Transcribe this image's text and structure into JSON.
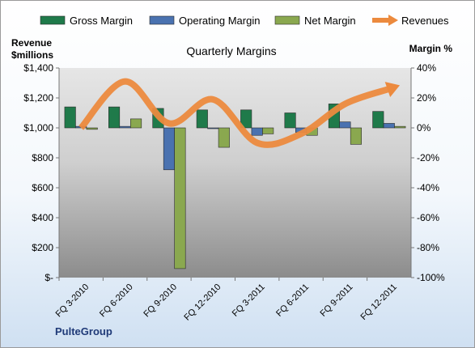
{
  "chart_data": {
    "type": "bar",
    "title": "Quarterly Margins",
    "company": "PulteGroup",
    "ylabel_left_line1": "Revenue",
    "ylabel_left_line2": "$millions",
    "ylabel_right": "Margin %",
    "categories": [
      "FQ 3-2010",
      "FQ 6-2010",
      "FQ 9-2010",
      "FQ 12-2010",
      "FQ 3-2011",
      "FQ 6-2011",
      "FQ 9-2011",
      "FQ 12-2011"
    ],
    "left_axis": {
      "min": 0,
      "max": 1400,
      "step": 200,
      "tick_labels": [
        "$-",
        "$200",
        "$400",
        "$600",
        "$800",
        "$1,000",
        "$1,200",
        "$1,400"
      ]
    },
    "right_axis": {
      "min": -100,
      "max": 40,
      "step": 20,
      "tick_labels": [
        "-100%",
        "-80%",
        "-60%",
        "-40%",
        "-20%",
        "0%",
        "20%",
        "40%"
      ]
    },
    "series": [
      {
        "name": "Gross Margin",
        "kind": "bar",
        "axis": "right",
        "color": "#1f7a4a",
        "values": [
          14,
          14,
          13,
          12,
          12,
          10,
          16,
          11
        ]
      },
      {
        "name": "Operating Margin",
        "kind": "bar",
        "axis": "right",
        "color": "#4a72b0",
        "values": [
          1,
          1,
          -28,
          0,
          -5,
          -3,
          4,
          3
        ]
      },
      {
        "name": "Net Margin",
        "kind": "bar",
        "axis": "right",
        "color": "#8aa84f",
        "values": [
          -1,
          6,
          -94,
          -13,
          -4,
          -5,
          -11,
          1
        ]
      },
      {
        "name": "Revenues",
        "kind": "line",
        "axis": "left",
        "color": "#ec8a3e",
        "values": [
          1000,
          1310,
          1030,
          1190,
          900,
          960,
          1160,
          1260
        ]
      }
    ],
    "grid": false,
    "legend_position": "top"
  }
}
